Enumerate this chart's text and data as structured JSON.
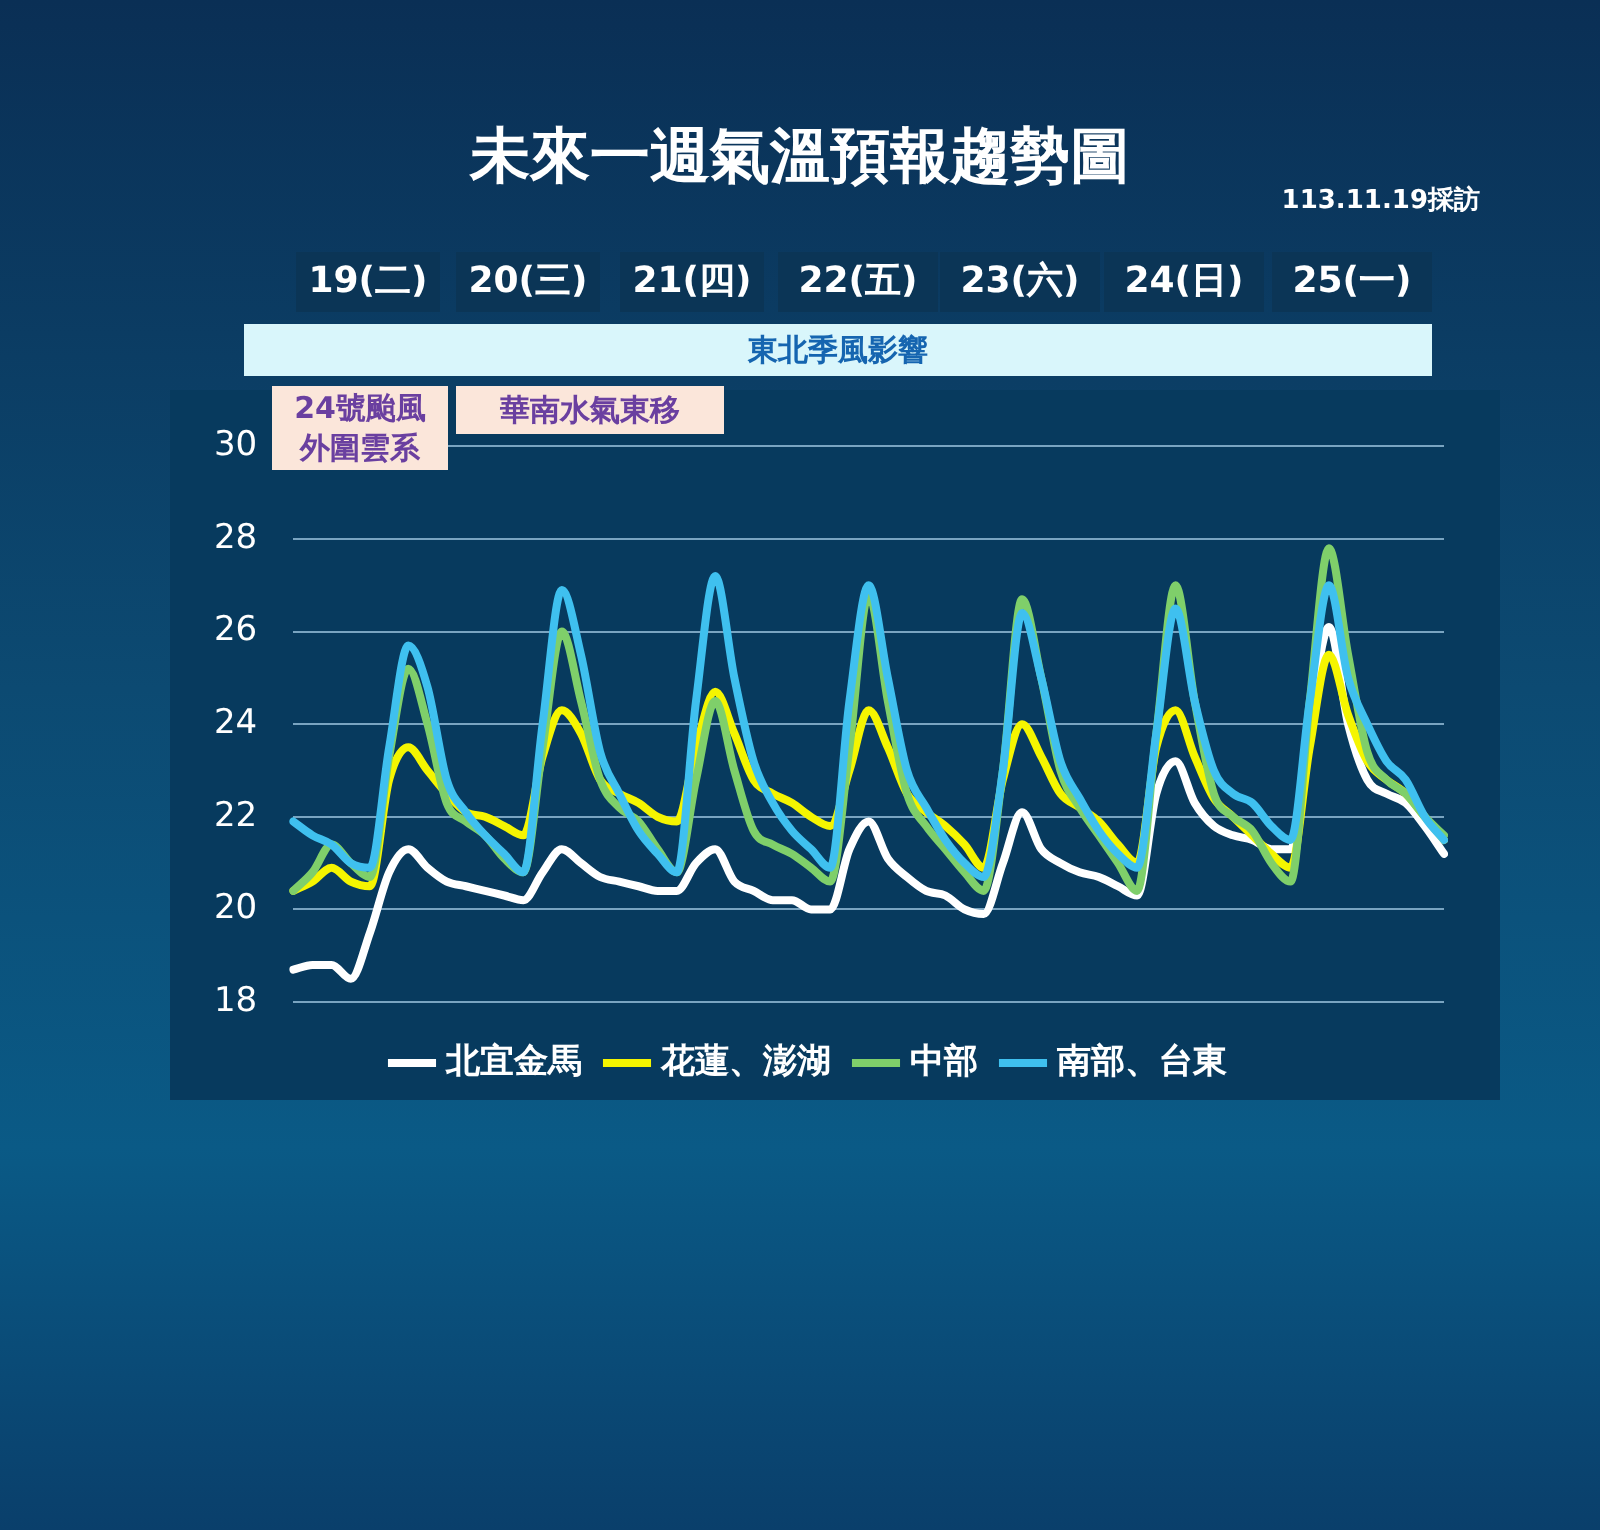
{
  "chart_data": {
    "type": "line",
    "title": "未來一週氣溫預報趨勢圖",
    "annotations": [
      "19(二)",
      "20(三)",
      "21(四)",
      "22(五)",
      "23(六)",
      "24(日)",
      "25(一)",
      "東北季風影響",
      "24號颱風外圍雲系",
      "華南水氣東移",
      "113.11.19採訪"
    ],
    "categories": [
      null,
      null,
      null,
      null,
      null,
      null,
      null,
      null,
      null,
      null,
      null,
      null,
      null,
      null,
      null,
      null,
      null,
      null,
      null,
      null,
      null,
      null,
      null,
      null,
      null,
      null,
      null,
      null,
      null,
      null,
      null,
      null,
      null,
      null,
      null,
      null,
      null,
      null,
      null,
      null,
      null,
      null,
      null,
      null,
      null,
      null,
      null,
      null,
      null,
      null,
      null,
      null,
      null,
      null,
      null,
      null,
      null,
      null,
      null,
      null,
      null
    ],
    "series": [
      {
        "name": "北宜金馬",
        "color": "#ffffff",
        "values": [
          18.7,
          18.8,
          18.8,
          18.5,
          19.5,
          20.8,
          21.3,
          20.9,
          20.6,
          20.5,
          20.4,
          20.3,
          20.2,
          20.8,
          21.3,
          21.0,
          20.7,
          20.6,
          20.5,
          20.4,
          20.4,
          21.0,
          21.3,
          20.6,
          20.4,
          20.2,
          20.2,
          20.0,
          20.0,
          21.3,
          21.9,
          21.1,
          20.7,
          20.4,
          20.3,
          20.0,
          19.9,
          21.0,
          22.1,
          21.3,
          21.0,
          20.8,
          20.7,
          20.5,
          20.3,
          22.5,
          23.2,
          22.3,
          21.8,
          21.6,
          21.5,
          21.3,
          21.3,
          24.0,
          26.1,
          24.0,
          22.8,
          22.5,
          22.3,
          21.8,
          21.2
        ]
      },
      {
        "name": "花蓮、澎湖",
        "color": "#f5f500",
        "values": [
          20.4,
          20.6,
          20.9,
          20.6,
          20.5,
          22.8,
          23.5,
          23.0,
          22.5,
          22.1,
          22.0,
          21.8,
          21.6,
          23.3,
          24.3,
          23.8,
          22.8,
          22.5,
          22.3,
          22.0,
          21.9,
          23.5,
          24.7,
          23.8,
          22.8,
          22.5,
          22.3,
          22.0,
          21.8,
          23.0,
          24.3,
          23.5,
          22.5,
          22.1,
          21.8,
          21.4,
          20.9,
          22.8,
          24.0,
          23.3,
          22.5,
          22.2,
          21.9,
          21.4,
          21.0,
          23.5,
          24.3,
          23.3,
          22.4,
          22.0,
          21.6,
          21.2,
          20.9,
          23.5,
          25.5,
          24.2,
          23.2,
          22.8,
          22.5,
          22.0,
          21.5
        ]
      },
      {
        "name": "中部",
        "color": "#7fcf6a",
        "values": [
          20.4,
          20.8,
          21.4,
          21.0,
          20.7,
          23.3,
          25.2,
          24.0,
          22.3,
          21.9,
          21.6,
          21.1,
          20.8,
          23.5,
          26.0,
          24.5,
          22.8,
          22.2,
          21.9,
          21.3,
          20.8,
          22.8,
          24.5,
          23.0,
          21.7,
          21.4,
          21.2,
          20.9,
          20.6,
          23.5,
          26.8,
          24.5,
          22.5,
          21.8,
          21.3,
          20.8,
          20.4,
          23.0,
          26.7,
          25.0,
          23.0,
          22.2,
          21.6,
          21.0,
          20.4,
          23.8,
          27.0,
          24.5,
          22.5,
          22.0,
          21.7,
          21.0,
          20.6,
          24.5,
          27.8,
          25.5,
          23.4,
          22.8,
          22.5,
          22.0,
          21.6
        ]
      },
      {
        "name": "南部、台東",
        "color": "#3fc0ef",
        "values": [
          21.9,
          21.6,
          21.4,
          21.0,
          20.9,
          23.5,
          25.7,
          24.8,
          22.8,
          22.1,
          21.6,
          21.2,
          20.8,
          24.0,
          26.9,
          25.5,
          23.4,
          22.5,
          21.7,
          21.2,
          20.8,
          24.5,
          27.2,
          25.0,
          23.2,
          22.3,
          21.7,
          21.3,
          20.9,
          24.5,
          27.0,
          25.0,
          23.0,
          22.2,
          21.5,
          21.0,
          20.7,
          23.0,
          26.4,
          25.0,
          23.2,
          22.4,
          21.7,
          21.2,
          20.9,
          23.8,
          26.5,
          24.5,
          23.0,
          22.5,
          22.3,
          21.8,
          21.5,
          24.5,
          27.0,
          25.0,
          24.0,
          23.2,
          22.8,
          22.0,
          21.5
        ]
      }
    ],
    "ylim": [
      18,
      30
    ],
    "yticks": [
      18,
      20,
      22,
      24,
      26,
      28,
      30
    ],
    "grid": "y",
    "legend": "bottom",
    "tick_labels": "y"
  }
}
